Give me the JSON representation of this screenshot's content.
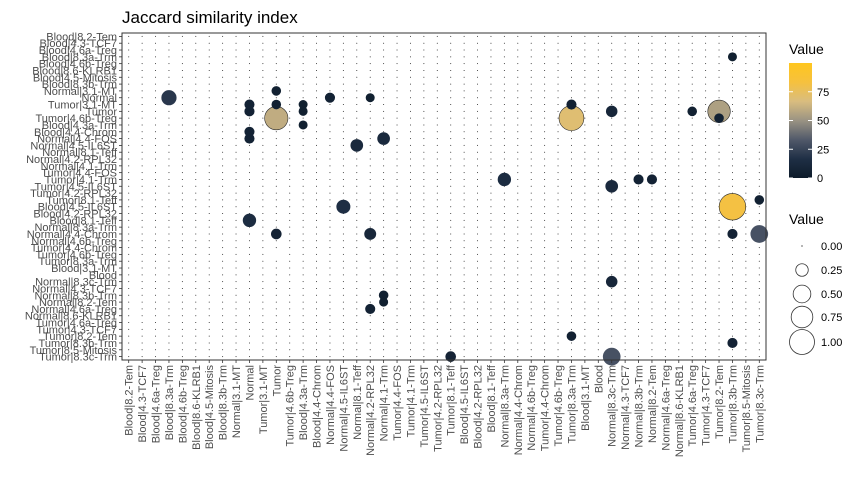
{
  "chart_data": {
    "type": "bubble-matrix",
    "title": "Jaccard similarity index",
    "xlabel": "",
    "ylabel": "",
    "x_categories": [
      "Blood|8.2-Tem",
      "Blood|4.3-TCF7",
      "Blood|4.6a-Treg",
      "Blood|8.3a-Trm",
      "Blood|4.6b-Treg",
      "Blood|8.6-KLRB1",
      "Blood|4.5-Mitosis",
      "Blood|8.3b-Trm",
      "Normal|3.1-MT",
      "Normal",
      "Tumor|3.1-MT",
      "Tumor",
      "Tumor|4.6b-Treg",
      "Blood|4.3a-Trm",
      "Blood|4.4-Chrom",
      "Normal|4.4-FOS",
      "Normal|4.5-IL6ST",
      "Normal|8.1-Teff",
      "Normal|4.2-RPL32",
      "Normal|4.1-Trm",
      "Tumor|4.4-FOS",
      "Tumor|4.1-Trm",
      "Tumor|4.5-IL6ST",
      "Tumor|4.2-RPL32",
      "Tumor|8.1-Teff",
      "Blood|4.5-IL6ST",
      "Blood|4.2-RPL32",
      "Blood|8.1-Teff",
      "Normal|8.3a-Trm",
      "Normal|4.4-Chrom",
      "Normal|4.6b-Treg",
      "Tumor|4.4-Chrom",
      "Tumor|4.6b-Treg",
      "Tumor|8.3a-Trm",
      "Blood|3.1-MT",
      "Blood",
      "Normal|8.3c-Trm",
      "Normal|4.3-TCF7",
      "Normal|8.3b-Trm",
      "Normal|8.2-Tem",
      "Normal|4.6a-Treg",
      "Normal|8.6-KLRB1",
      "Tumor|4.6a-Treg",
      "Tumor|4.3-TCF7",
      "Tumor|8.2-Tem",
      "Tumor|8.3b-Trm",
      "Tumor|8.5-Mitosis",
      "Tumor|8.3c-Trm"
    ],
    "y_categories": [
      "Blood|8.2-Tem",
      "Blood|4.3-TCF7",
      "Blood|4.6a-Treg",
      "Blood|8.3a-Trm",
      "Blood|4.6b-Treg",
      "Blood|8.6-KLRB1",
      "Blood|4.5-Mitosis",
      "Blood|8.3b-Trm",
      "Normal|3.1-MT",
      "Normal",
      "Tumor|3.1-MT",
      "Tumor",
      "Tumor|4.6b-Treg",
      "Blood|4.3a-Trm",
      "Blood|4.4-Chrom",
      "Normal|4.4-FOS",
      "Normal|4.5-IL6ST",
      "Normal|8.1-Teff",
      "Normal|4.2-RPL32",
      "Normal|4.1-Trm",
      "Tumor|4.4-FOS",
      "Tumor|4.1-Trm",
      "Tumor|4.5-IL6ST",
      "Tumor|4.2-RPL32",
      "Tumor|8.1-Teff",
      "Blood|4.5-IL6ST",
      "Blood|4.2-RPL32",
      "Blood|8.1-Teff",
      "Normal|8.3a-Trm",
      "Normal|4.4-Chrom",
      "Normal|4.6b-Treg",
      "Tumor|4.4-Chrom",
      "Tumor|4.6b-Treg",
      "Tumor|8.3a-Trm",
      "Blood|3.1-MT",
      "Blood",
      "Normal|8.3c-Trm",
      "Normal|4.3-TCF7",
      "Normal|8.3b-Trm",
      "Normal|8.2-Tem",
      "Normal|4.6a-Treg",
      "Normal|8.6-KLRB1",
      "Tumor|4.6a-Treg",
      "Tumor|4.3-TCF7",
      "Tumor|8.2-Tem",
      "Tumor|8.3b-Trm",
      "Tumor|8.5-Mitosis",
      "Tumor|8.3c-Trm"
    ],
    "base_value": 0.005,
    "points": [
      {
        "x": "Tumor",
        "y": "Tumor|4.6b-Treg",
        "value": 0.6
      },
      {
        "x": "Tumor|8.3a-Trm",
        "y": "Tumor|4.6b-Treg",
        "value": 0.7
      },
      {
        "x": "Tumor|8.2-Tem",
        "y": "Tumor",
        "value": 0.55
      },
      {
        "x": "Tumor|8.3b-Trm",
        "y": "Blood|4.5-IL6ST",
        "value": 0.82
      },
      {
        "x": "Tumor|8.3c-Trm",
        "y": "Normal|4.4-Chrom",
        "value": 0.3
      },
      {
        "x": "Normal|8.3c-Trm",
        "y": "Tumor|8.3c-Trm",
        "value": 0.3
      },
      {
        "x": "Blood|8.3a-Trm",
        "y": "Normal",
        "value": 0.2
      },
      {
        "x": "Normal|4.5-IL6ST",
        "y": "Blood|4.5-IL6ST",
        "value": 0.16
      },
      {
        "x": "Normal",
        "y": "Blood|8.1-Teff",
        "value": 0.14
      },
      {
        "x": "Normal|8.3a-Trm",
        "y": "Tumor|4.1-Trm",
        "value": 0.14
      },
      {
        "x": "Normal|4.1-Trm",
        "y": "Normal|4.4-FOS",
        "value": 0.12
      },
      {
        "x": "Normal|8.1-Teff",
        "y": "Normal|4.5-IL6ST",
        "value": 0.12
      },
      {
        "x": "Normal|8.3c-Trm",
        "y": "Tumor|4.5-IL6ST",
        "value": 0.12
      },
      {
        "x": "Normal|8.3c-Trm",
        "y": "Tumor",
        "value": 0.09
      },
      {
        "x": "Normal|8.3c-Trm",
        "y": "Normal|8.3c-Trm",
        "value": 0.09
      },
      {
        "x": "Tumor|8.1-Teff",
        "y": "Tumor|8.6-KLRB1",
        "value": 0.1
      },
      {
        "x": "Normal|4.2-RPL32",
        "y": "Normal|4.4-Chrom",
        "value": 0.1
      },
      {
        "x": "Normal|4.4-FOS",
        "y": "Normal",
        "value": 0.06
      },
      {
        "x": "Normal",
        "y": "Tumor",
        "value": 0.06
      },
      {
        "x": "Normal",
        "y": "Tumor|3.1-MT",
        "value": 0.06
      },
      {
        "x": "Normal",
        "y": "Normal|4.4-FOS",
        "value": 0.06
      },
      {
        "x": "Normal",
        "y": "Blood|4.4-Chrom",
        "value": 0.06
      },
      {
        "x": "Tumor",
        "y": "Normal|4.4-Chrom",
        "value": 0.07
      },
      {
        "x": "Tumor",
        "y": "Tumor|3.1-MT",
        "value": 0.05
      },
      {
        "x": "Tumor",
        "y": "Normal|3.1-MT",
        "value": 0.05
      },
      {
        "x": "Tumor|8.1-Teff",
        "y": "Tumor|8.3c-Trm",
        "value": 0.07
      },
      {
        "x": "Tumor|8.3a-Trm",
        "y": "Tumor|3.1-MT",
        "value": 0.06
      },
      {
        "x": "Tumor|8.3a-Trm",
        "y": "Tumor|8.2-Tem",
        "value": 0.05
      },
      {
        "x": "Normal|8.3b-Trm",
        "y": "Tumor|4.1-Trm",
        "value": 0.06
      },
      {
        "x": "Normal|8.2-Tem",
        "y": "Tumor|4.1-Trm",
        "value": 0.06
      },
      {
        "x": "Tumor|8.2-Tem",
        "y": "Tumor|4.6b-Treg",
        "value": 0.05
      },
      {
        "x": "Tumor|8.3b-Trm",
        "y": "Normal|4.4-Chrom",
        "value": 0.06
      },
      {
        "x": "Tumor|8.3b-Trm",
        "y": "Tumor|8.3b-Trm",
        "value": 0.06
      },
      {
        "x": "Tumor|4.6a-Treg",
        "y": "Tumor",
        "value": 0.05
      },
      {
        "x": "Normal|4.2-RPL32",
        "y": "Normal|4.6a-Treg",
        "value": 0.06
      },
      {
        "x": "Normal|4.2-RPL32",
        "y": "Normal",
        "value": 0.04
      },
      {
        "x": "Normal|4.1-Trm",
        "y": "Normal|8.3b-Trm",
        "value": 0.05
      },
      {
        "x": "Normal|4.1-Trm",
        "y": "Normal|8.2-Tem",
        "value": 0.04
      },
      {
        "x": "Tumor|8.3c-Trm",
        "y": "Tumor|8.1-Teff",
        "value": 0.05
      },
      {
        "x": "Blood|4.3a-Trm",
        "y": "Tumor",
        "value": 0.04
      },
      {
        "x": "Blood|4.3a-Trm",
        "y": "Tumor|3.1-MT",
        "value": 0.04
      },
      {
        "x": "Blood|4.3a-Trm",
        "y": "Blood|4.3a-Trm",
        "value": 0.04
      },
      {
        "x": "Tumor|8.3b-Trm",
        "y": "Blood|8.3a-Trm",
        "value": 0.04
      }
    ],
    "legend_color": {
      "title": "Value",
      "ticks": [
        0,
        25,
        50,
        75
      ],
      "range": [
        0,
        100
      ],
      "colors": [
        "#0d1b2a",
        "#1f2f45",
        "#51596a",
        "#9a9383",
        "#d9bd7f",
        "#f6c13e",
        "#ffc61e"
      ]
    },
    "legend_size": {
      "title": "Value",
      "ticks": [
        "0.00",
        "0.25",
        "0.50",
        "0.75",
        "1.00"
      ],
      "values": [
        0,
        0.25,
        0.5,
        0.75,
        1.0
      ]
    },
    "grid": "dotted"
  }
}
